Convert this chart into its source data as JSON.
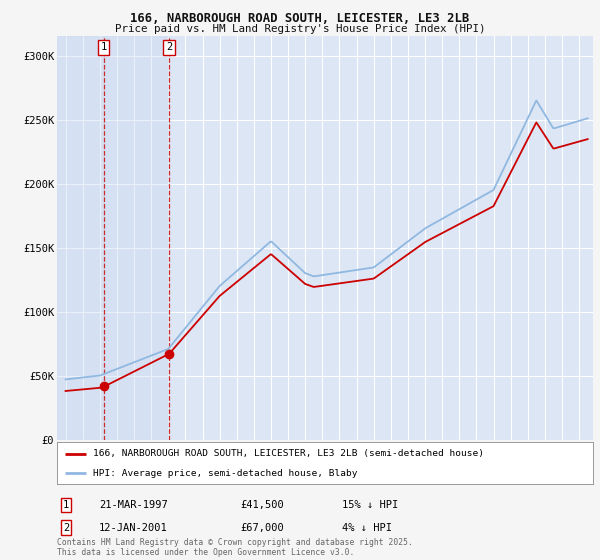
{
  "title_line1": "166, NARBOROUGH ROAD SOUTH, LEICESTER, LE3 2LB",
  "title_line2": "Price paid vs. HM Land Registry's House Price Index (HPI)",
  "background_color": "#f5f5f5",
  "plot_bg_color": "#dce6f5",
  "grid_color": "#ffffff",
  "hpi_color": "#90b8e0",
  "price_color": "#cc0000",
  "sale1_year": 1997.22,
  "sale1_price": 41500,
  "sale2_year": 2001.04,
  "sale2_price": 67000,
  "legend_label_price": "166, NARBOROUGH ROAD SOUTH, LEICESTER, LE3 2LB (semi-detached house)",
  "legend_label_hpi": "HPI: Average price, semi-detached house, Blaby",
  "footnote": "Contains HM Land Registry data © Crown copyright and database right 2025.\nThis data is licensed under the Open Government Licence v3.0.",
  "table_rows": [
    {
      "num": "1",
      "date": "21-MAR-1997",
      "price": "£41,500",
      "note": "15% ↓ HPI"
    },
    {
      "num": "2",
      "date": "12-JAN-2001",
      "price": "£67,000",
      "note": "4% ↓ HPI"
    }
  ],
  "yticks": [
    0,
    50000,
    100000,
    150000,
    200000,
    250000,
    300000
  ],
  "ylabels": [
    "£0",
    "£50K",
    "£100K",
    "£150K",
    "£200K",
    "£250K",
    "£300K"
  ],
  "ylim_max": 315000,
  "xlim_min": 1994.5,
  "xlim_max": 2025.8
}
